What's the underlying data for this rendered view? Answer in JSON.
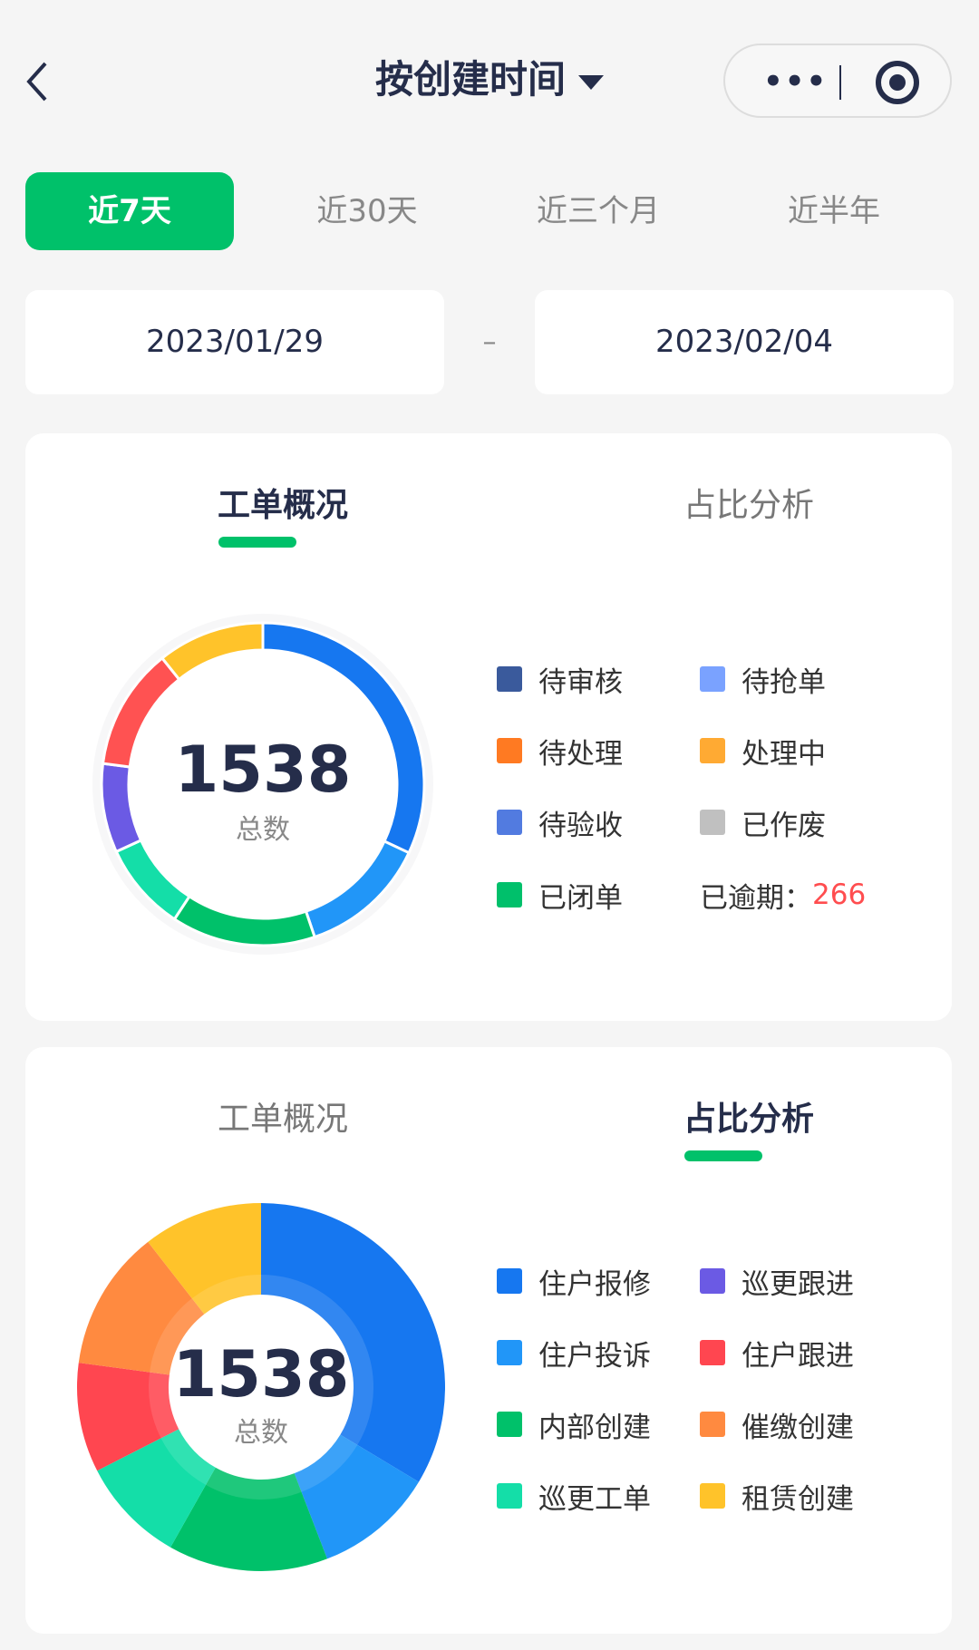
{
  "header": {
    "title": "按创建时间",
    "back_icon": "chevron-left-icon",
    "more_icon": "more-dots-icon",
    "more_glyph": "•••",
    "close_icon": "target-circle-icon"
  },
  "ranges": [
    {
      "label": "近7天",
      "active": true
    },
    {
      "label": "近30天"
    },
    {
      "label": "近三个月"
    },
    {
      "label": "近半年"
    }
  ],
  "dates": {
    "start": "2023/01/29",
    "separator": "–",
    "end": "2023/02/04"
  },
  "accent": "#00c16a",
  "card1": {
    "tabs": [
      "工单概况",
      "占比分析"
    ],
    "active_tab": 0,
    "total": "1538",
    "total_label": "总数",
    "legend": [
      {
        "label": "待审核",
        "color": "#3a5a9c"
      },
      {
        "label": "待抢单",
        "color": "#7aa2ff"
      },
      {
        "label": "待处理",
        "color": "#ff7a22"
      },
      {
        "label": "处理中",
        "color": "#ffaa33"
      },
      {
        "label": "待验收",
        "color": "#527be0"
      },
      {
        "label": "已作废",
        "color": "#c0c0c0"
      },
      {
        "label": "已闭单",
        "color": "#00c06b"
      }
    ],
    "overdue_label": "已逾期：",
    "overdue_value": "266",
    "overdue_color": "#ff4d4f"
  },
  "card2": {
    "tabs": [
      "工单概况",
      "占比分析"
    ],
    "active_tab": 1,
    "total": "1538",
    "total_label": "总数",
    "legend": [
      {
        "label": "住户报修",
        "color": "#1677f0"
      },
      {
        "label": "巡更跟进",
        "color": "#6b5ae4"
      },
      {
        "label": "住户投诉",
        "color": "#2196f8"
      },
      {
        "label": "住户跟进",
        "color": "#ff4650"
      },
      {
        "label": "内部创建",
        "color": "#00c16a"
      },
      {
        "label": "催缴创建",
        "color": "#ff8a40"
      },
      {
        "label": "巡更工单",
        "color": "#14dea8"
      },
      {
        "label": "租赁创建",
        "color": "#ffc32a"
      }
    ]
  },
  "chart_data": [
    {
      "type": "pie",
      "variant": "donut",
      "total": 1538,
      "values": [
        492,
        197,
        222,
        137,
        137,
        188,
        165
      ],
      "colors": [
        "#1677f0",
        "#2196f8",
        "#00c16a",
        "#14dea8",
        "#6b5ae4",
        "#ff5252",
        "#ffc32a"
      ]
    },
    {
      "type": "pie",
      "variant": "donut",
      "total": 1538,
      "categories": [
        "住户报修",
        "住户投诉",
        "内部创建",
        "巡更工单",
        "住户跟进",
        "催缴创建",
        "租赁创建",
        "巡更跟进"
      ],
      "values": [
        517,
        162,
        216,
        143,
        148,
        190,
        162,
        0
      ],
      "colors": [
        "#1677f0",
        "#2196f8",
        "#00c16a",
        "#14dea8",
        "#ff4650",
        "#ff8a40",
        "#ffc32a",
        "#6b5ae4"
      ]
    }
  ]
}
